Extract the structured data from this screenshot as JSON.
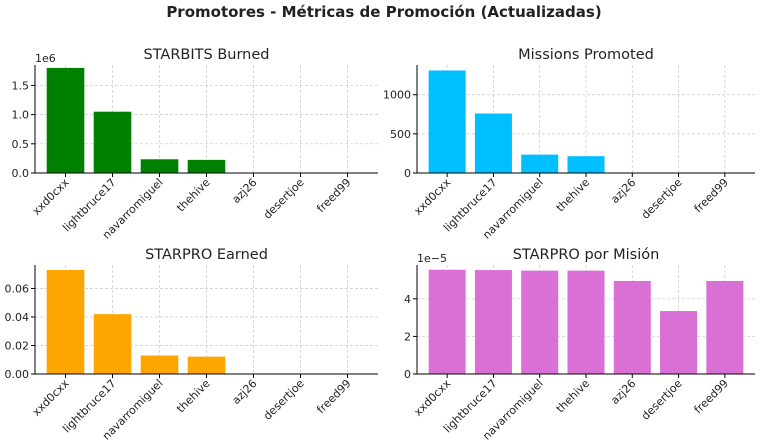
{
  "figure_title": "Promotores - Métricas de Promoción (Actualizadas)",
  "chart_data": [
    {
      "type": "bar",
      "title": "STARBITS Burned",
      "color": "#008000",
      "categories": [
        "xxd0cxx",
        "lightbruce17",
        "navarromiguel",
        "thehive",
        "azj26",
        "desertjoe",
        "freed99"
      ],
      "values": [
        1800000,
        1050000,
        235000,
        225000,
        0,
        0,
        0
      ],
      "ylim": [
        0,
        1850000
      ],
      "yticks": [
        0,
        500000,
        1000000,
        1500000
      ],
      "ytick_labels": [
        "0.0",
        "0.5",
        "1.0",
        "1.5"
      ],
      "offset_text": "1e6",
      "grid": true
    },
    {
      "type": "bar",
      "title": "Missions Promoted",
      "color": "#00bfff",
      "categories": [
        "xxd0cxx",
        "lightbruce17",
        "navarromiguel",
        "thehive",
        "azj26",
        "desertjoe",
        "freed99"
      ],
      "values": [
        1310,
        760,
        235,
        215,
        0,
        0,
        0
      ],
      "ylim": [
        0,
        1380
      ],
      "yticks": [
        0,
        500,
        1000
      ],
      "ytick_labels": [
        "0",
        "500",
        "1000"
      ],
      "offset_text": "",
      "grid": true
    },
    {
      "type": "bar",
      "title": "STARPRO Earned",
      "color": "#ffa500",
      "categories": [
        "xxd0cxx",
        "lightbruce17",
        "navarromiguel",
        "thehive",
        "azj26",
        "desertjoe",
        "freed99"
      ],
      "values": [
        0.073,
        0.042,
        0.013,
        0.0122,
        0,
        0,
        0
      ],
      "ylim": [
        0,
        0.0765
      ],
      "yticks": [
        0,
        0.02,
        0.04,
        0.06
      ],
      "ytick_labels": [
        "0.00",
        "0.02",
        "0.04",
        "0.06"
      ],
      "offset_text": "",
      "grid": true
    },
    {
      "type": "bar",
      "title": "STARPRO por Misión",
      "color": "#da70d6",
      "categories": [
        "xxd0cxx",
        "lightbruce17",
        "navarromiguel",
        "thehive",
        "azj26",
        "desertjoe",
        "freed99"
      ],
      "values": [
        5.55,
        5.53,
        5.5,
        5.5,
        4.95,
        3.35,
        4.95
      ],
      "ylim": [
        0,
        5.8
      ],
      "yticks": [
        0,
        2,
        4
      ],
      "ytick_labels": [
        "0",
        "2",
        "4"
      ],
      "offset_text": "1e−5",
      "grid": true
    }
  ]
}
